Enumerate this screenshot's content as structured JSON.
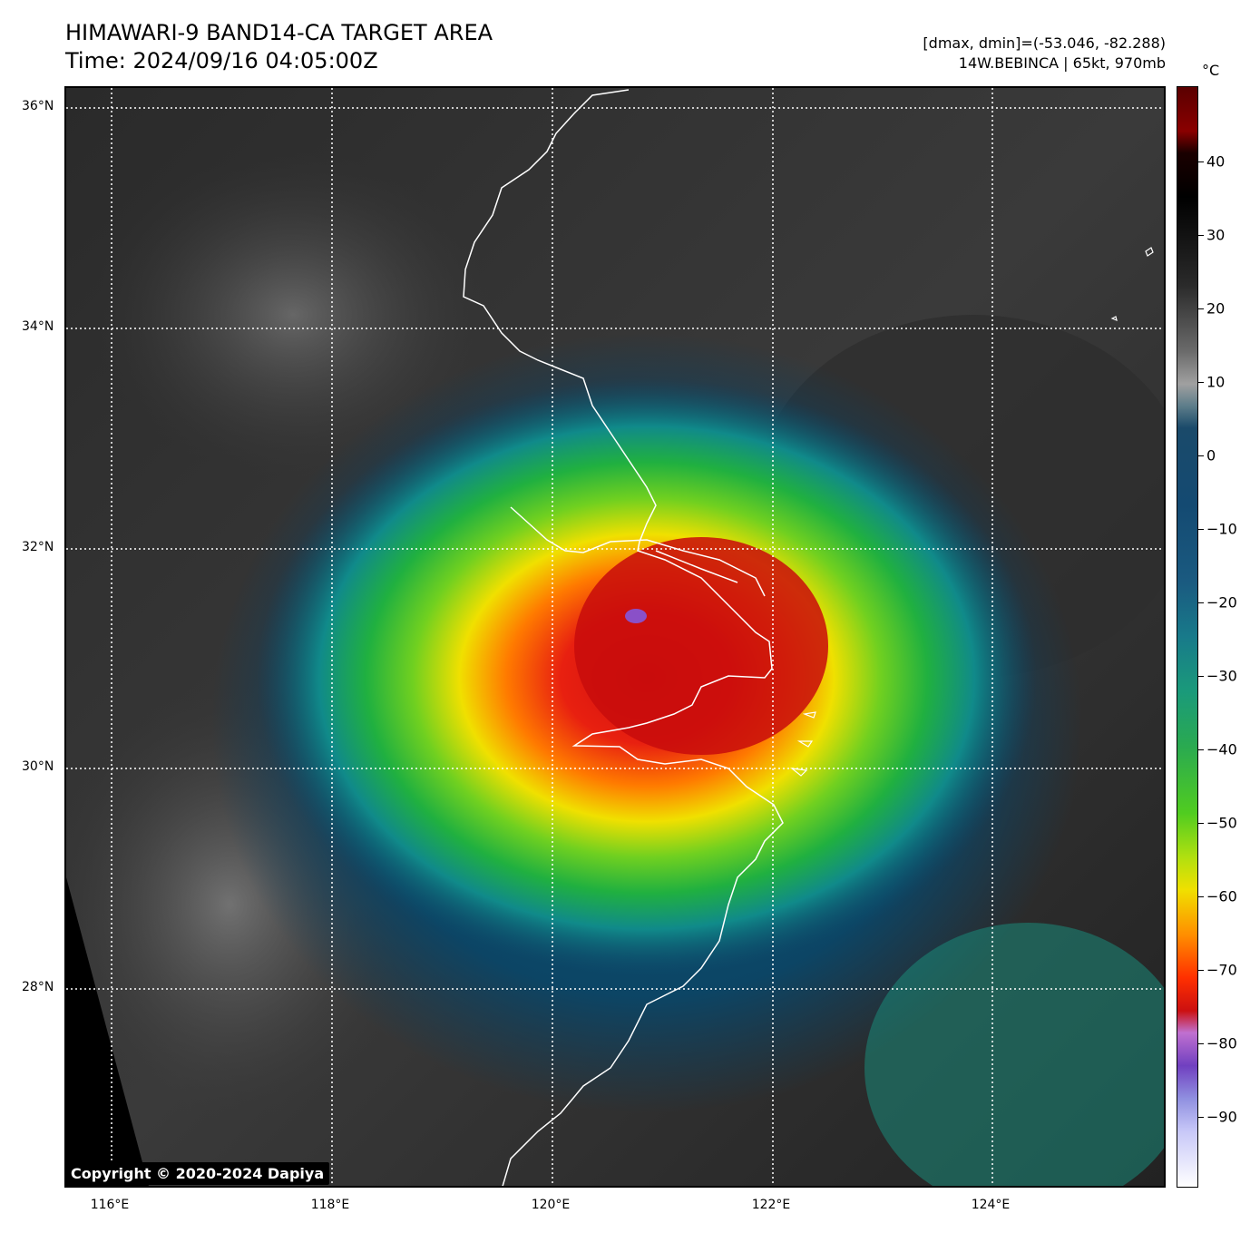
{
  "header": {
    "title_line1": "HIMAWARI-9 BAND14-CA TARGET AREA",
    "title_line2": "Time: 2024/09/16 04:05:00Z",
    "dmax_dmin": "[dmax, dmin]=(-53.046, -82.288)",
    "storm_info": "14W.BEBINCA | 65kt, 970mb"
  },
  "map": {
    "lat_labels": [
      "36°N",
      "34°N",
      "32°N",
      "30°N",
      "28°N"
    ],
    "lon_labels": [
      "116°E",
      "118°E",
      "120°E",
      "122°E",
      "124°E"
    ],
    "copyright": "Copyright © 2020-2024 Dapiya"
  },
  "colorbar": {
    "unit": "°C",
    "tick_labels": [
      "40",
      "30",
      "20",
      "10",
      "0",
      "−10",
      "−20",
      "−30",
      "−40",
      "−50",
      "−60",
      "−70",
      "−80",
      "−90"
    ]
  }
}
